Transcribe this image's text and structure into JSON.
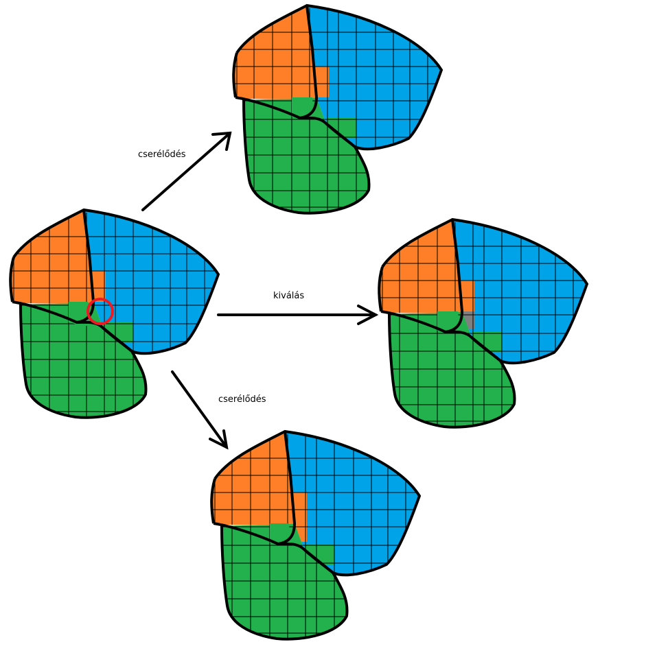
{
  "labels": {
    "top": "cserélődés",
    "middle": "kiválás",
    "bottom": "cserélődés"
  },
  "colors": {
    "orange": "#fe7f27",
    "blue": "#00a2e8",
    "green": "#22b14c",
    "gray": "#7f7f7f",
    "grid": "#000000",
    "outline": "#000000",
    "highlight": "#ed1c24",
    "background": "#ffffff"
  }
}
